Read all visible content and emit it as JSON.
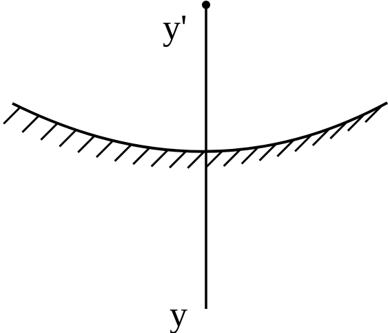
{
  "labels": {
    "top": "y'",
    "bottom": "y"
  },
  "colors": {
    "ink": "#000000",
    "background": "#ffffff"
  }
}
